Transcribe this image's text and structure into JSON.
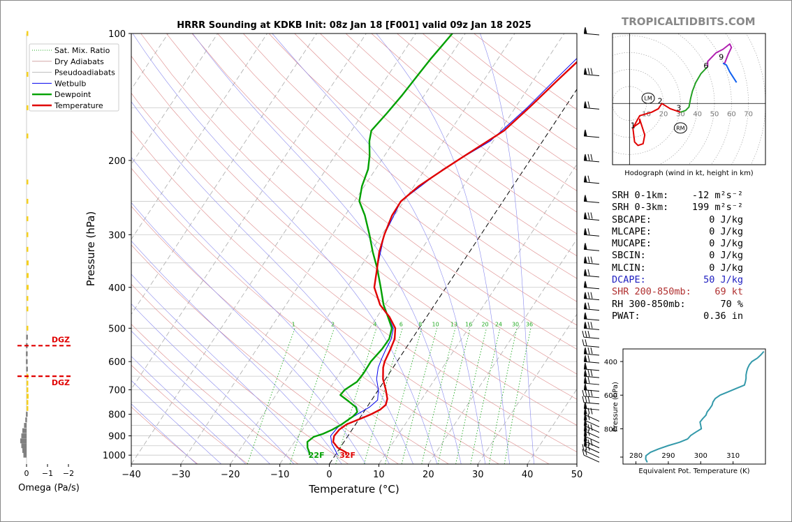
{
  "brand": "TROPICALTIDBITS.COM",
  "colors": {
    "temperature": "#e00000",
    "dewpoint": "#00a000",
    "wetbulb": "#0000ee",
    "omega_up": "#f5d020",
    "omega_down": "#808080",
    "dgz": "#e00000",
    "hodo_0_3": "#e00000",
    "hodo_3_6": "#22a022",
    "hodo_6_9": "#b020b0",
    "hodo_9_12": "#1060f0",
    "theta_e": "#3399aa",
    "dcape": "#2020c0",
    "shear": "#b03030"
  },
  "chart_data": [
    {
      "id": "skewt",
      "type": "line",
      "title": "HRRR Sounding at KDKB Init: 08z Jan 18 [F001] valid 09z Jan 18 2025",
      "xlabel": "Temperature (°C)",
      "ylabel": "Pressure (hPa)",
      "xlim": [
        -40,
        50
      ],
      "ylim": [
        1050,
        100
      ],
      "log_y": true,
      "x_ticks": [
        -40,
        -30,
        -20,
        -10,
        0,
        10,
        20,
        30,
        40,
        50
      ],
      "x_tick_labels": [
        "−40",
        "−30",
        "−20",
        "−10",
        "0",
        "10",
        "20",
        "30",
        "40",
        "50"
      ],
      "y_ticks": [
        1000,
        900,
        800,
        700,
        600,
        500,
        400,
        300,
        200,
        100
      ],
      "legend": [
        "Sat. Mix. Ratio",
        "Dry Adiabats",
        "Pseudoadiabats",
        "Wetbulb",
        "Dewpoint",
        "Temperature"
      ],
      "mix_ratio_labels": [
        "1",
        "2",
        "4",
        "6",
        "8",
        "10",
        "13",
        "16",
        "20",
        "24",
        "30",
        "36"
      ],
      "surface_labels": {
        "dewpoint": "22F",
        "temperature": "32F"
      },
      "series": [
        {
          "name": "Temperature",
          "points": [
            [
              1000,
              2.2
            ],
            [
              985,
              1.8
            ],
            [
              960,
              -0.5
            ],
            [
              930,
              -2.2
            ],
            [
              900,
              -2.8
            ],
            [
              870,
              -2.6
            ],
            [
              845,
              -1.8
            ],
            [
              820,
              0.2
            ],
            [
              800,
              1.8
            ],
            [
              780,
              3.0
            ],
            [
              760,
              3.5
            ],
            [
              735,
              3.0
            ],
            [
              700,
              1.5
            ],
            [
              660,
              -0.5
            ],
            [
              620,
              -2.0
            ],
            [
              600,
              -2.5
            ],
            [
              560,
              -3.0
            ],
            [
              530,
              -3.5
            ],
            [
              500,
              -4.8
            ],
            [
              470,
              -7.5
            ],
            [
              440,
              -11.0
            ],
            [
              400,
              -14.5
            ],
            [
              360,
              -16.5
            ],
            [
              330,
              -18.2
            ],
            [
              300,
              -19.5
            ],
            [
              270,
              -20.5
            ],
            [
              250,
              -20.6
            ],
            [
              230,
              -19.0
            ],
            [
              210,
              -16.2
            ],
            [
              195,
              -13.8
            ],
            [
              170,
              -9.2
            ],
            [
              150,
              -7.2
            ],
            [
              130,
              -5.2
            ],
            [
              115,
              -3.4
            ],
            [
              100,
              -1.3
            ]
          ]
        },
        {
          "name": "Dewpoint",
          "points": [
            [
              1000,
              -5.2
            ],
            [
              985,
              -5.6
            ],
            [
              960,
              -6.6
            ],
            [
              930,
              -7.4
            ],
            [
              905,
              -6.8
            ],
            [
              890,
              -5.3
            ],
            [
              870,
              -4.0
            ],
            [
              845,
              -2.8
            ],
            [
              810,
              -1.6
            ],
            [
              790,
              -1.3
            ],
            [
              770,
              -2.2
            ],
            [
              745,
              -4.5
            ],
            [
              720,
              -7.0
            ],
            [
              700,
              -6.8
            ],
            [
              670,
              -5.4
            ],
            [
              640,
              -5.2
            ],
            [
              600,
              -5.3
            ],
            [
              560,
              -4.7
            ],
            [
              530,
              -4.6
            ],
            [
              500,
              -5.5
            ],
            [
              470,
              -7.8
            ],
            [
              440,
              -10.3
            ],
            [
              400,
              -13.2
            ],
            [
              360,
              -16.5
            ],
            [
              330,
              -19.5
            ],
            [
              300,
              -22.5
            ],
            [
              270,
              -26.0
            ],
            [
              250,
              -29.0
            ],
            [
              230,
              -30.5
            ],
            [
              210,
              -31.5
            ],
            [
              195,
              -33.0
            ],
            [
              180,
              -35.0
            ],
            [
              170,
              -36.0
            ],
            [
              155,
              -35.2
            ],
            [
              140,
              -34.5
            ],
            [
              125,
              -34.0
            ],
            [
              115,
              -33.6
            ],
            [
              100,
              -32.6
            ]
          ]
        },
        {
          "name": "Wetbulb",
          "points": [
            [
              1000,
              0.5
            ],
            [
              970,
              -0.8
            ],
            [
              940,
              -2.2
            ],
            [
              900,
              -3.5
            ],
            [
              860,
              -3.2
            ],
            [
              830,
              -2.4
            ],
            [
              800,
              -1.0
            ],
            [
              770,
              0.5
            ],
            [
              740,
              1.2
            ],
            [
              700,
              0.0
            ],
            [
              660,
              -1.8
            ],
            [
              620,
              -3.0
            ],
            [
              590,
              -3.5
            ],
            [
              560,
              -3.9
            ],
            [
              530,
              -4.2
            ],
            [
              500,
              -5.2
            ],
            [
              470,
              -7.7
            ],
            [
              440,
              -11.0
            ],
            [
              400,
              -14.5
            ],
            [
              360,
              -16.5
            ],
            [
              300,
              -19.5
            ],
            [
              250,
              -20.6
            ],
            [
              210,
              -16.4
            ],
            [
              180,
              -10.6
            ],
            [
              150,
              -7.6
            ],
            [
              130,
              -5.8
            ],
            [
              100,
              -2.3
            ]
          ]
        }
      ],
      "wind_pressures": [
        1000,
        975,
        950,
        925,
        900,
        875,
        850,
        825,
        800,
        775,
        750,
        725,
        700,
        675,
        650,
        625,
        600,
        575,
        550,
        525,
        500,
        475,
        450,
        425,
        400,
        375,
        350,
        325,
        300,
        275,
        250,
        225,
        200,
        175,
        150,
        125,
        100
      ]
    },
    {
      "id": "omega",
      "type": "bar",
      "xlabel": "Omega (Pa/s)",
      "xlim": [
        0.2,
        -2.0
      ],
      "x_ticks": [
        0,
        -1,
        -2
      ],
      "x_tick_labels": [
        "0",
        "−1",
        "−2"
      ],
      "dgz_label": "DGZ",
      "dgz_levels": [
        550,
        650
      ],
      "values": [
        [
          1000,
          0.15
        ],
        [
          975,
          0.2
        ],
        [
          950,
          0.25
        ],
        [
          925,
          0.3
        ],
        [
          900,
          0.25
        ],
        [
          875,
          0.2
        ],
        [
          850,
          0.12
        ],
        [
          825,
          0.06
        ],
        [
          800,
          0.03
        ],
        [
          775,
          -0.05
        ],
        [
          750,
          -0.08
        ],
        [
          725,
          -0.1
        ],
        [
          700,
          -0.08
        ],
        [
          675,
          -0.06
        ],
        [
          650,
          -0.04
        ],
        [
          625,
          0.02
        ],
        [
          600,
          0.03
        ],
        [
          575,
          0.03
        ],
        [
          550,
          0.03
        ],
        [
          525,
          0.02
        ],
        [
          500,
          -0.03
        ],
        [
          450,
          -0.06
        ],
        [
          425,
          -0.08
        ],
        [
          400,
          -0.1
        ],
        [
          375,
          -0.1
        ],
        [
          350,
          -0.1
        ],
        [
          325,
          -0.08
        ],
        [
          300,
          -0.07
        ],
        [
          275,
          -0.05
        ],
        [
          250,
          -0.04
        ],
        [
          225,
          -0.03
        ],
        [
          175,
          -0.05
        ],
        [
          150,
          -0.04
        ],
        [
          125,
          -0.06
        ],
        [
          100,
          -0.04
        ]
      ]
    },
    {
      "id": "hodograph",
      "type": "line",
      "caption": "Hodograph (wind in kt, height in km)",
      "xlim": [
        -10,
        80
      ],
      "ylim": [
        -35,
        40
      ],
      "ring_labels": [
        "10",
        "20",
        "30",
        "40",
        "50",
        "60",
        "70"
      ],
      "height_labels": [
        "1",
        "2",
        "3",
        "6",
        "9"
      ],
      "lm_label": "LM",
      "rm_label": "RM",
      "lm": [
        11,
        3
      ],
      "rm": [
        30,
        -14
      ],
      "segments": [
        {
          "km": "0-3",
          "points": [
            [
              2,
              -14
            ],
            [
              3,
              -22
            ],
            [
              5,
              -24
            ],
            [
              8,
              -23
            ],
            [
              9,
              -18
            ],
            [
              6,
              -9
            ],
            [
              6,
              -11
            ],
            [
              3,
              -13
            ],
            [
              2,
              -14
            ],
            [
              6,
              -7
            ],
            [
              13,
              -5
            ],
            [
              17,
              -3
            ],
            [
              19,
              0
            ],
            [
              24,
              -3
            ],
            [
              27,
              -4
            ],
            [
              30,
              -5
            ]
          ]
        },
        {
          "km": "3-6",
          "points": [
            [
              30,
              -5
            ],
            [
              33,
              -4
            ],
            [
              35,
              -2
            ],
            [
              36,
              3
            ],
            [
              37,
              7
            ],
            [
              39,
              12
            ],
            [
              42,
              17
            ],
            [
              45,
              20
            ],
            [
              46,
              21
            ]
          ]
        },
        {
          "km": "6-9",
          "points": [
            [
              46,
              21
            ],
            [
              46,
              24
            ],
            [
              48,
              26
            ],
            [
              51,
              29
            ],
            [
              55,
              31
            ],
            [
              59,
              34
            ],
            [
              60,
              32
            ],
            [
              58,
              28
            ],
            [
              56,
              23
            ],
            [
              55,
              23
            ]
          ]
        },
        {
          "km": "9-12",
          "points": [
            [
              55,
              23
            ],
            [
              57,
              22
            ],
            [
              59,
              18
            ],
            [
              63,
              12
            ]
          ]
        }
      ]
    },
    {
      "id": "theta_e",
      "type": "line",
      "xlabel": "Equivalent Pot. Temperature (K)",
      "ylabel": "Pressure (hPa)",
      "xlim": [
        276,
        320
      ],
      "ylim": [
        1010,
        325
      ],
      "x_ticks": [
        280,
        290,
        300,
        310
      ],
      "y_ticks": [
        400,
        600,
        800
      ],
      "series": [
        {
          "name": "",
          "points": [
            [
              1000,
              283.5
            ],
            [
              980,
              283.0
            ],
            [
              960,
              283.1
            ],
            [
              940,
              284.5
            ],
            [
              920,
              287.0
            ],
            [
              900,
              290.0
            ],
            [
              880,
              293.5
            ],
            [
              860,
              296.0
            ],
            [
              840,
              296.9
            ],
            [
              820,
              298.5
            ],
            [
              800,
              300.2
            ],
            [
              780,
              300.0
            ],
            [
              760,
              299.8
            ],
            [
              740,
              300.6
            ],
            [
              720,
              301.6
            ],
            [
              700,
              302.0
            ],
            [
              680,
              302.8
            ],
            [
              660,
              303.5
            ],
            [
              640,
              303.8
            ],
            [
              620,
              304.5
            ],
            [
              600,
              306.0
            ],
            [
              580,
              308.5
            ],
            [
              560,
              311.0
            ],
            [
              540,
              313.5
            ],
            [
              520,
              313.8
            ],
            [
              500,
              314.0
            ],
            [
              480,
              314.0
            ],
            [
              460,
              314.2
            ],
            [
              440,
              314.5
            ],
            [
              420,
              315.0
            ],
            [
              400,
              315.8
            ],
            [
              380,
              317.5
            ],
            [
              360,
              318.6
            ],
            [
              340,
              319.5
            ]
          ]
        }
      ]
    }
  ],
  "stats": [
    {
      "label": "SRH 0-1km:",
      "value": "-12",
      "unit": "m²s⁻²",
      "color": "#000000"
    },
    {
      "label": "SRH 0-3km:",
      "value": "199",
      "unit": "m²s⁻²",
      "color": "#000000"
    },
    {
      "label": "SBCAPE:",
      "value": "0 J/kg",
      "unit": "",
      "color": "#000000"
    },
    {
      "label": "MLCAPE:",
      "value": "0 J/kg",
      "unit": "",
      "color": "#000000"
    },
    {
      "label": "MUCAPE:",
      "value": "0 J/kg",
      "unit": "",
      "color": "#000000"
    },
    {
      "label": "SBCIN:",
      "value": "0 J/kg",
      "unit": "",
      "color": "#000000"
    },
    {
      "label": "MLCIN:",
      "value": "0 J/kg",
      "unit": "",
      "color": "#000000"
    },
    {
      "label": "DCAPE:",
      "value": "50 J/kg",
      "unit": "",
      "color": "#2020c0"
    },
    {
      "label": "SHR 200-850mb:",
      "value": "69 kt",
      "unit": "",
      "color": "#b03030"
    },
    {
      "label": "RH 300-850mb:",
      "value": "70 %",
      "unit": "",
      "color": "#000000"
    },
    {
      "label": "PWAT:",
      "value": "0.36 in",
      "unit": "",
      "color": "#000000"
    }
  ]
}
